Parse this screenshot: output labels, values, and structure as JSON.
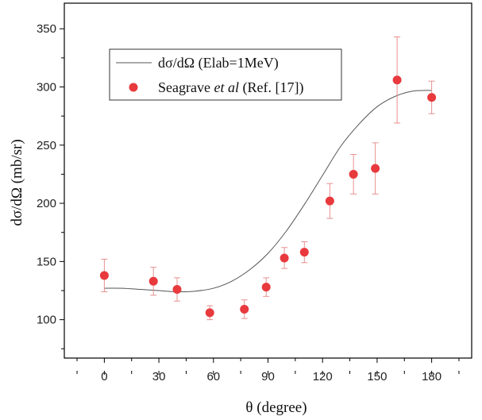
{
  "chart_data": {
    "type": "scatter",
    "xlabel": "θ (degree)",
    "ylabel": "dσ/dΩ (mb/sr)",
    "xlim": [
      -22,
      202
    ],
    "ylim": [
      67,
      372
    ],
    "x_ticks": [
      0,
      30,
      60,
      90,
      120,
      150,
      180
    ],
    "y_ticks": [
      100,
      150,
      200,
      250,
      300,
      350
    ],
    "grid": false,
    "legend_position": "top-center",
    "series": [
      {
        "name": "dσ/dΩ (Elab=1MeV)",
        "kind": "line",
        "color": "#555555",
        "x": [
          0,
          10,
          20,
          30,
          40,
          50,
          60,
          70,
          80,
          90,
          100,
          110,
          120,
          130,
          140,
          150,
          160,
          170,
          180
        ],
        "y": [
          127,
          127,
          126,
          125,
          124,
          124.5,
          127,
          133,
          143,
          157,
          176,
          199,
          224,
          249,
          268,
          283,
          292,
          296.5,
          297
        ]
      },
      {
        "name": "Seagrave et al (Ref. [17])",
        "legend_parts": [
          "Seagrave ",
          "et al",
          " (Ref. [17])"
        ],
        "kind": "scatter",
        "color": "#e8393d",
        "error_color": "#e89090",
        "x": [
          0,
          27,
          40,
          58,
          77,
          89,
          99,
          110,
          124,
          137,
          149,
          161,
          180
        ],
        "y": [
          138,
          133,
          126,
          106,
          109,
          128,
          153,
          158,
          202,
          225,
          230,
          306,
          291
        ],
        "err_low": [
          14,
          12,
          10,
          6,
          8,
          8,
          9,
          9,
          15,
          17,
          22,
          37,
          14
        ],
        "err_high": [
          14,
          12,
          10,
          6,
          8,
          8,
          9,
          9,
          15,
          17,
          22,
          37,
          14
        ]
      }
    ]
  }
}
